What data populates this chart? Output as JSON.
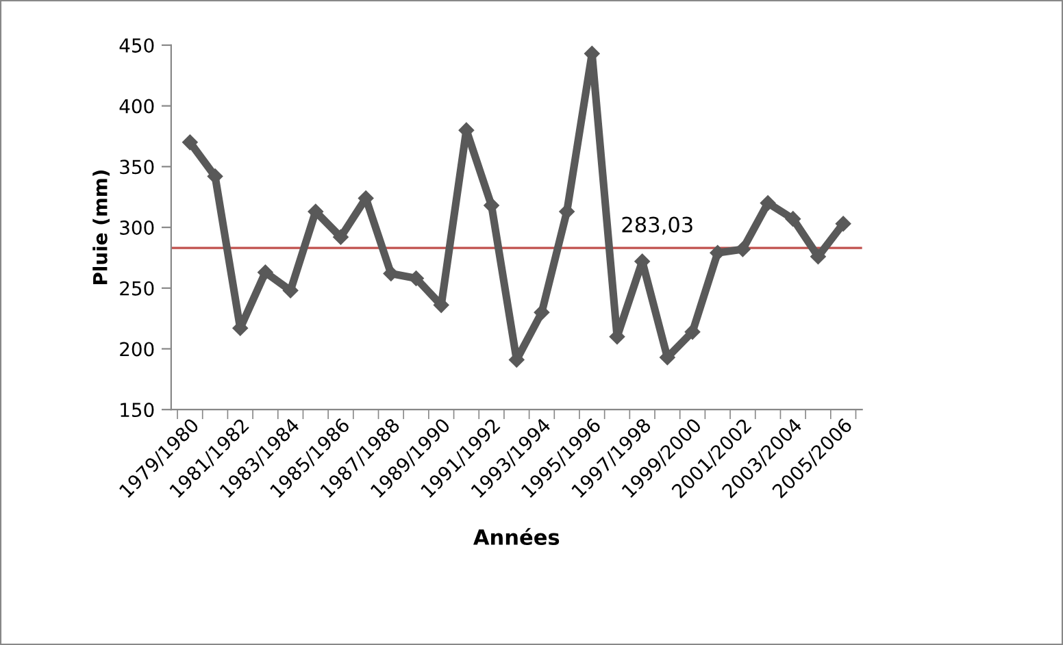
{
  "chart_data": {
    "type": "line",
    "xlabel": "Années",
    "ylabel": "Pluie (mm)",
    "categories": [
      "1979/1980",
      null,
      "1981/1982",
      null,
      "1983/1984",
      null,
      "1985/1986",
      null,
      "1987/1988",
      null,
      "1989/1990",
      null,
      "1991/1992",
      null,
      "1993/1994",
      null,
      "1995/1996",
      null,
      "1997/1998",
      null,
      "1999/2000",
      null,
      "2001/2002",
      null,
      "2003/2004",
      null,
      "2005/2006"
    ],
    "series": [
      {
        "color": "#595959",
        "values": [
          370,
          342,
          217,
          263,
          248,
          313,
          292,
          324,
          262,
          258,
          236,
          380,
          318,
          191,
          230,
          313,
          443,
          210,
          272,
          193,
          214,
          279,
          282,
          320,
          307,
          276,
          303
        ]
      }
    ],
    "ylim": [
      150,
      450
    ],
    "yticks": [
      150,
      200,
      250,
      300,
      350,
      400,
      450
    ],
    "ref_lines": [
      {
        "axis": "y",
        "value": 283.03,
        "label": "283,03",
        "color": "#c0504d"
      }
    ],
    "marker": "diamond",
    "line_style": "solid",
    "grid": false,
    "legend": false
  }
}
